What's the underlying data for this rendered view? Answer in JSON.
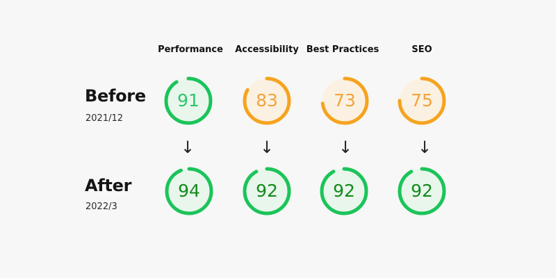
{
  "columns": [
    "Performance",
    "Accessibility",
    "Best Practices",
    "SEO"
  ],
  "rows": [
    {
      "title": "Before",
      "date": "2021/12",
      "scores": [
        91,
        83,
        73,
        75
      ]
    },
    {
      "title": "After",
      "date": "2022/3",
      "scores": [
        94,
        92,
        92,
        92
      ]
    }
  ],
  "arrow_symbol": "↓",
  "colors": {
    "good_ring": "#1bc45a",
    "good_fill": "#e9f6ec",
    "good_text_before": "#2ec56c",
    "good_text_after": "#138a1c",
    "average_ring": "#f6a31f",
    "average_fill": "#fbf1e2",
    "average_text": "#f2a43b"
  }
}
